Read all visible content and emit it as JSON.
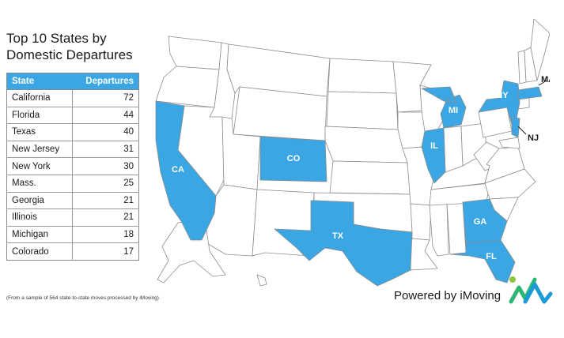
{
  "title_line1": "Top 10 States by",
  "title_line2": "Domestic Departures",
  "table": {
    "header_state": "State",
    "header_departures": "Departures",
    "rows": [
      {
        "state": "California",
        "departures": "72"
      },
      {
        "state": "Florida",
        "departures": "44"
      },
      {
        "state": "Texas",
        "departures": "40"
      },
      {
        "state": "New Jersey",
        "departures": "31"
      },
      {
        "state": "New York",
        "departures": "30"
      },
      {
        "state": "Mass.",
        "departures": "25"
      },
      {
        "state": "Georgia",
        "departures": "21"
      },
      {
        "state": "Illinois",
        "departures": "21"
      },
      {
        "state": "Michigan",
        "departures": "18"
      },
      {
        "state": "Colorado",
        "departures": "17"
      }
    ]
  },
  "map": {
    "highlight_color": "#3aa7e4",
    "base_color": "#ffffff",
    "border_color": "#8c8c8c",
    "labels": {
      "ca": "CA",
      "tx": "TX",
      "fl": "FL",
      "co": "CO",
      "il": "IL",
      "mi": "MI",
      "ga": "GA",
      "ny": "NY",
      "ma": "MA",
      "nj": "NJ"
    }
  },
  "footnote": "(From a sample of 564 state-to-state moves processed by iMoving)",
  "powered_by": "Powered by iMoving",
  "logo_colors": [
    "#2bb673",
    "#8dc63f",
    "#1c9ad6"
  ]
}
